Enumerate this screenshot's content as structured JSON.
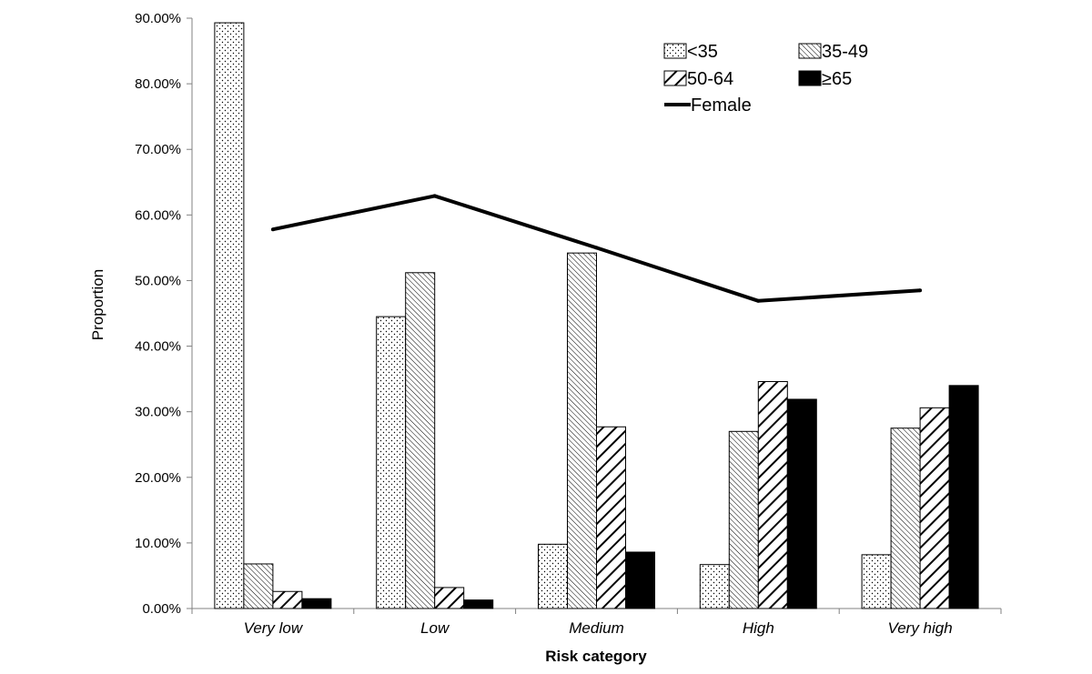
{
  "chart_data": {
    "type": "bar",
    "title": "",
    "xlabel": "Risk category",
    "ylabel": "Proportion",
    "ylim": [
      0,
      90
    ],
    "ytick_values": [
      0,
      10,
      20,
      30,
      40,
      50,
      60,
      70,
      80,
      90
    ],
    "ytick_labels": [
      "0.00%",
      "10.00%",
      "20.00%",
      "30.00%",
      "40.00%",
      "50.00%",
      "60.00%",
      "70.00%",
      "80.00%",
      "90.00%"
    ],
    "categories": [
      "Very low",
      "Low",
      "Medium",
      "High",
      "Very high"
    ],
    "series": [
      {
        "name": "<35",
        "kind": "bar",
        "pattern": "dots",
        "values": [
          89.3,
          44.5,
          9.8,
          6.7,
          8.2
        ]
      },
      {
        "name": "35-49",
        "kind": "bar",
        "pattern": "fine-diagonal",
        "values": [
          6.8,
          51.2,
          54.2,
          27.0,
          27.5
        ]
      },
      {
        "name": "50-64",
        "kind": "bar",
        "pattern": "bold-diagonal",
        "values": [
          2.6,
          3.2,
          27.7,
          34.6,
          30.6
        ]
      },
      {
        "name": "≥65",
        "kind": "bar",
        "pattern": "solid",
        "values": [
          1.5,
          1.3,
          8.6,
          31.9,
          34.0
        ]
      },
      {
        "name": "Female",
        "kind": "line",
        "values": [
          57.8,
          62.9,
          55.0,
          46.9,
          48.5
        ]
      }
    ],
    "legend_position": "top-right",
    "grid": false
  }
}
